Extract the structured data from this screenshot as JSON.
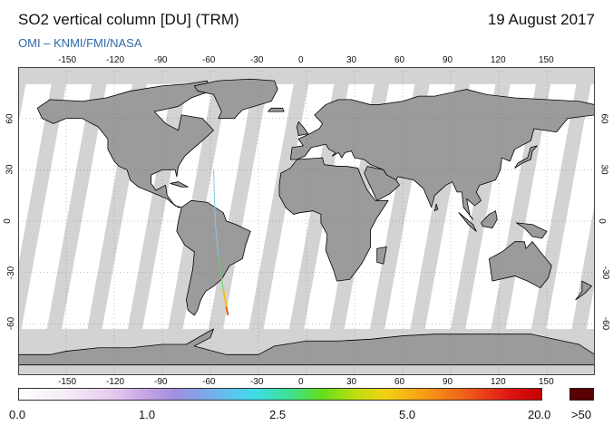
{
  "header": {
    "title": "SO2 vertical column [DU] (TRM)",
    "date": "19 August 2017",
    "credit": "OMI  –  KNMI/FMI/NASA"
  },
  "map": {
    "projection": "equirectangular",
    "lon_range": [
      -180,
      180
    ],
    "lat_range": [
      -90,
      90
    ],
    "lon_ticks": [
      "-150",
      "-120",
      "-90",
      "-60",
      "-30",
      "0",
      "30",
      "60",
      "90",
      "120",
      "150"
    ],
    "lat_ticks": [
      "60",
      "30",
      "0",
      "-30",
      "-60"
    ],
    "colors": {
      "land": "#9b9b9b",
      "data_swath": "#ffffff",
      "no_data": "#d3d3d3",
      "coastline": "#000000"
    },
    "plume": {
      "description_free": true,
      "track": [
        [
          -58,
          30
        ],
        [
          -57,
          0
        ],
        [
          -55,
          -20
        ],
        [
          -52,
          -40
        ],
        [
          -50,
          -50
        ],
        [
          -49,
          -55
        ]
      ],
      "colors": [
        "#7ec9ee",
        "#5fd86a",
        "#f2c014",
        "#e05a14"
      ]
    }
  },
  "colorbar": {
    "labels": [
      "0.0",
      "1.0",
      "2.5",
      "5.0",
      "20.0"
    ],
    "overflow_label": ">50",
    "overflow_color": "#5a0000"
  }
}
